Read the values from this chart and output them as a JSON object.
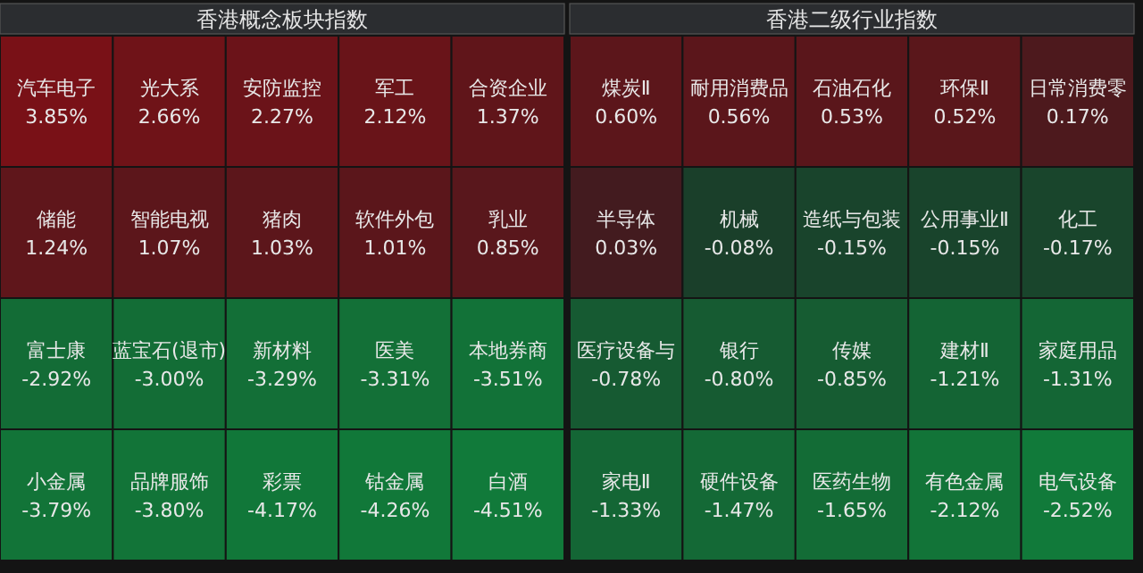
{
  "chart_data": [
    {
      "type": "other",
      "title": "香港概念板块指数",
      "categories": [
        "汽车电子",
        "光大系",
        "安防监控",
        "军工",
        "合资企业",
        "储能",
        "智能电视",
        "猪肉",
        "软件外包",
        "乳业",
        "富士康",
        "蓝宝石(退市)",
        "新材料",
        "医美",
        "本地券商",
        "小金属",
        "品牌服饰",
        "彩票",
        "钴金属",
        "白酒"
      ],
      "values": [
        3.85,
        2.66,
        2.27,
        2.12,
        1.37,
        1.24,
        1.07,
        1.03,
        1.01,
        0.85,
        -2.92,
        -3.0,
        -3.29,
        -3.31,
        -3.51,
        -3.79,
        -3.8,
        -4.17,
        -4.26,
        -4.51
      ],
      "value_labels": [
        "3.85%",
        "2.66%",
        "2.27%",
        "2.12%",
        "1.37%",
        "1.24%",
        "1.07%",
        "1.03%",
        "1.01%",
        "0.85%",
        "-2.92%",
        "-3.00%",
        "-3.29%",
        "-3.31%",
        "-3.51%",
        "-3.79%",
        "-3.80%",
        "-4.17%",
        "-4.26%",
        "-4.51%"
      ]
    },
    {
      "type": "other",
      "title": "香港二级行业指数",
      "categories": [
        "煤炭Ⅱ",
        "耐用消费品",
        "石油石化",
        "环保Ⅱ",
        "日常消费零",
        "半导体",
        "机械",
        "造纸与包装",
        "公用事业Ⅱ",
        "化工",
        "医疗设备与",
        "银行",
        "传媒",
        "建材Ⅱ",
        "家庭用品",
        "家电Ⅱ",
        "硬件设备",
        "医药生物",
        "有色金属",
        "电气设备"
      ],
      "values": [
        0.6,
        0.56,
        0.53,
        0.52,
        0.17,
        0.03,
        -0.08,
        -0.15,
        -0.15,
        -0.17,
        -0.78,
        -0.8,
        -0.85,
        -1.21,
        -1.31,
        -1.33,
        -1.47,
        -1.65,
        -2.12,
        -2.52
      ],
      "value_labels": [
        "0.60%",
        "0.56%",
        "0.53%",
        "0.52%",
        "0.17%",
        "0.03%",
        "-0.08%",
        "-0.15%",
        "-0.15%",
        "-0.17%",
        "-0.78%",
        "-0.80%",
        "-0.85%",
        "-1.21%",
        "-1.31%",
        "-1.33%",
        "-1.47%",
        "-1.65%",
        "-2.12%",
        "-2.52%"
      ]
    }
  ]
}
